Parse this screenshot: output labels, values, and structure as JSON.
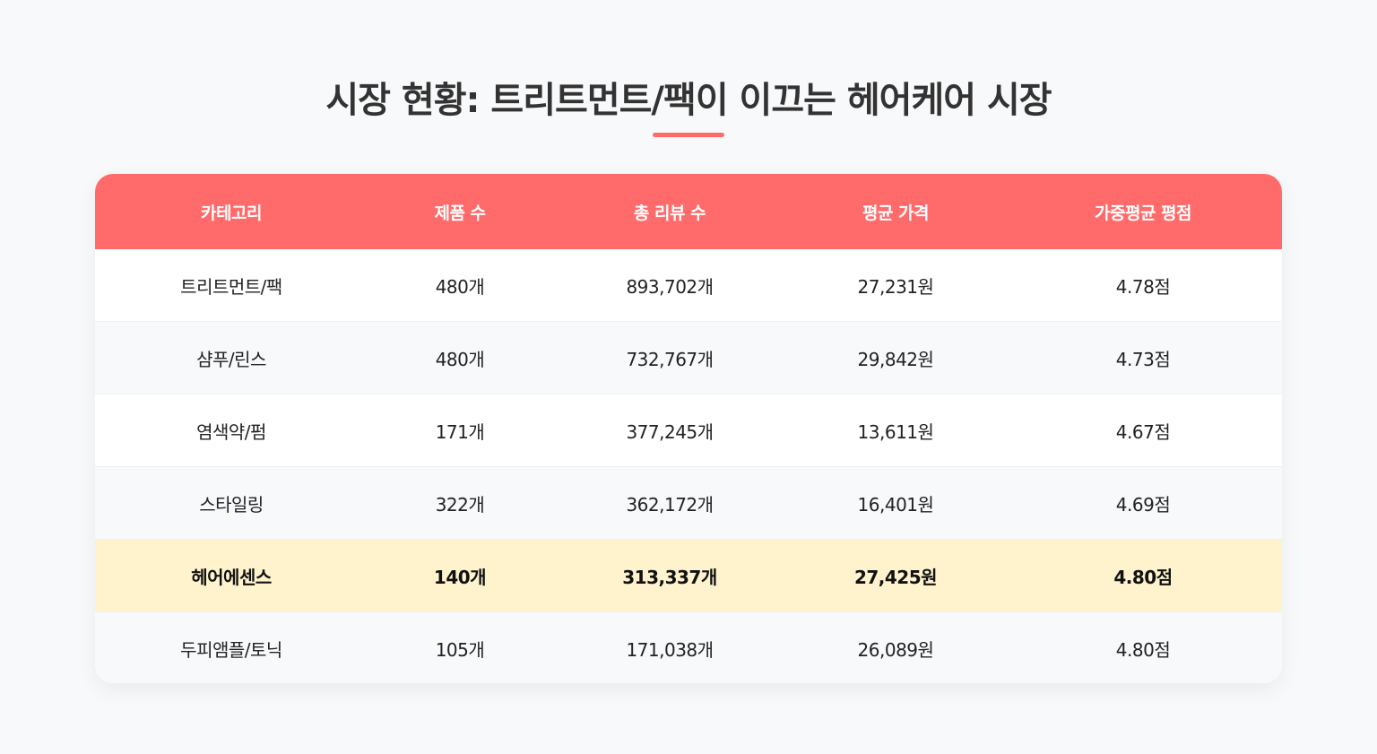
{
  "header": {
    "title": "시장 현황: 트리트먼트/팩이 이끄는 헤어케어 시장"
  },
  "colors": {
    "accent": "#ff6b6b",
    "highlight_row": "#fff3cd",
    "background": "#f8f9fa"
  },
  "table": {
    "columns": [
      "카테고리",
      "제품 수",
      "총 리뷰 수",
      "평균 가격",
      "가중평균 평점"
    ],
    "rows": [
      [
        "트리트먼트/팩",
        "480개",
        "893,702개",
        "27,231원",
        "4.78점"
      ],
      [
        "샴푸/린스",
        "480개",
        "732,767개",
        "29,842원",
        "4.73점"
      ],
      [
        "염색약/펌",
        "171개",
        "377,245개",
        "13,611원",
        "4.67점"
      ],
      [
        "스타일링",
        "322개",
        "362,172개",
        "16,401원",
        "4.69점"
      ],
      [
        "헤어에센스",
        "140개",
        "313,337개",
        "27,425원",
        "4.80점"
      ],
      [
        "두피앰플/토닉",
        "105개",
        "171,038개",
        "26,089원",
        "4.80점"
      ]
    ],
    "highlighted_row_index": 4
  }
}
